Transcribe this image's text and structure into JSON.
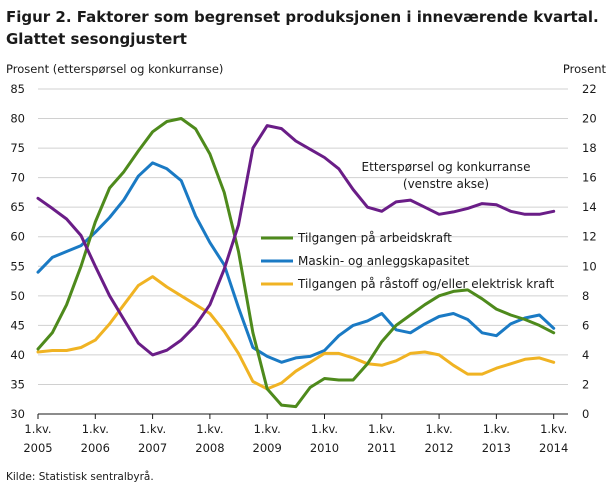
{
  "title_line1": "Figur 2. Faktorer som begrenset produksjonen i inneværende kvartal.",
  "title_line2": "Glattet sesongjustert",
  "source": "Kilde: Statistisk sentralbyrå.",
  "chart_data": {
    "type": "line",
    "left_axis_label": "Prosent  (etterspørsel  og  konkurranse)",
    "right_axis_label": "Prosent",
    "left_ylim": [
      30,
      85
    ],
    "left_ticks": [
      30,
      35,
      40,
      45,
      50,
      55,
      60,
      65,
      70,
      75,
      80,
      85
    ],
    "right_ylim": [
      0,
      22
    ],
    "right_ticks": [
      0,
      2,
      4,
      6,
      8,
      10,
      12,
      14,
      16,
      18,
      20,
      22
    ],
    "grid": true,
    "x_ticks": [
      {
        "label_top": "1.kv.",
        "label_bottom": "2005"
      },
      {
        "label_top": "1.kv.",
        "label_bottom": "2006"
      },
      {
        "label_top": "1.kv.",
        "label_bottom": "2007"
      },
      {
        "label_top": "1.kv.",
        "label_bottom": "2008"
      },
      {
        "label_top": "1.kv.",
        "label_bottom": "2009"
      },
      {
        "label_top": "1.kv.",
        "label_bottom": "2010"
      },
      {
        "label_top": "1.kv.",
        "label_bottom": "2011"
      },
      {
        "label_top": "1.kv.",
        "label_bottom": "2012"
      },
      {
        "label_top": "1.kv.",
        "label_bottom": "2013"
      },
      {
        "label_top": "1.kv.",
        "label_bottom": "2014"
      }
    ],
    "first_quarter": "1.kv. 2005",
    "last_quarter": "3.kv. 2014",
    "annotation_line1": "Etterspørsel  og  konkurranse",
    "annotation_line2": "(venstre  akse)",
    "series": [
      {
        "name": "Etterspørsel og konkurranse",
        "axis": "left",
        "color": "#6a1d87",
        "values": [
          66.5,
          64.8,
          63.0,
          60.2,
          55.0,
          50.0,
          46.0,
          42.0,
          40.0,
          40.8,
          42.5,
          45.0,
          48.5,
          54.5,
          62.0,
          75.0,
          78.8,
          78.3,
          76.2,
          74.8,
          73.4,
          71.5,
          68.0,
          65.0,
          64.3,
          65.9,
          66.2,
          65.0,
          63.8,
          64.2,
          64.8,
          65.6,
          65.4,
          64.3,
          63.8,
          63.8,
          64.3
        ]
      },
      {
        "name": "Tilgangen på arbeidskraft",
        "axis": "right",
        "color": "#4e8a1c",
        "values": [
          4.4,
          5.5,
          7.4,
          10.0,
          13.0,
          15.3,
          16.4,
          17.8,
          19.1,
          19.8,
          20.0,
          19.3,
          17.6,
          15.0,
          11.0,
          5.5,
          1.7,
          0.6,
          0.5,
          1.8,
          2.4,
          2.3,
          2.3,
          3.4,
          4.9,
          6.0,
          6.7,
          7.4,
          8.0,
          8.3,
          8.4,
          7.8,
          7.1,
          6.7,
          6.4,
          6.0,
          5.5
        ]
      },
      {
        "name": "Maskin- og anleggskapasitet",
        "axis": "right",
        "color": "#1a7ac4",
        "values": [
          9.6,
          10.6,
          11.0,
          11.4,
          12.3,
          13.3,
          14.5,
          16.1,
          17.0,
          16.6,
          15.8,
          13.4,
          11.6,
          10.1,
          7.2,
          4.5,
          3.9,
          3.5,
          3.8,
          3.9,
          4.3,
          5.3,
          6.0,
          6.3,
          6.8,
          5.7,
          5.5,
          6.1,
          6.6,
          6.8,
          6.4,
          5.5,
          5.3,
          6.1,
          6.5,
          6.7,
          5.8
        ]
      },
      {
        "name": "Tilgangen på råstoff og/eller elektrisk kraft",
        "axis": "right",
        "color": "#f0b323",
        "values": [
          4.2,
          4.3,
          4.3,
          4.5,
          5.0,
          6.1,
          7.4,
          8.7,
          9.3,
          8.6,
          8.0,
          7.4,
          6.8,
          5.6,
          4.1,
          2.2,
          1.7,
          2.1,
          2.9,
          3.5,
          4.1,
          4.1,
          3.8,
          3.4,
          3.3,
          3.6,
          4.1,
          4.2,
          4.0,
          3.3,
          2.7,
          2.7,
          3.1,
          3.4,
          3.7,
          3.8,
          3.5
        ]
      }
    ]
  }
}
